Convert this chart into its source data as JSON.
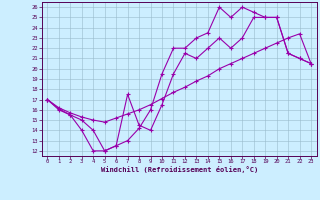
{
  "xlabel": "Windchill (Refroidissement éolien,°C)",
  "bg_color": "#cceeff",
  "line_color": "#9900aa",
  "grid_color": "#99bbcc",
  "xlim": [
    -0.5,
    23.5
  ],
  "ylim": [
    11.5,
    26.5
  ],
  "xticks": [
    0,
    1,
    2,
    3,
    4,
    5,
    6,
    7,
    8,
    9,
    10,
    11,
    12,
    13,
    14,
    15,
    16,
    17,
    18,
    19,
    20,
    21,
    22,
    23
  ],
  "yticks": [
    12,
    13,
    14,
    15,
    16,
    17,
    18,
    19,
    20,
    21,
    22,
    23,
    24,
    25,
    26
  ],
  "line1_x": [
    0,
    1,
    2,
    3,
    4,
    5,
    6,
    7,
    8,
    9,
    10,
    11,
    12,
    13,
    14,
    15,
    16,
    17,
    18,
    19,
    20,
    21,
    22,
    23
  ],
  "line1_y": [
    17,
    16,
    15.5,
    14,
    12,
    12,
    12.5,
    17.5,
    14.5,
    14,
    16.5,
    19.5,
    21.5,
    21,
    22,
    23,
    22,
    23,
    25,
    25,
    25,
    21.5,
    21,
    20.5
  ],
  "line2_x": [
    0,
    1,
    2,
    3,
    4,
    5,
    6,
    7,
    8,
    9,
    10,
    11,
    12,
    13,
    14,
    15,
    16,
    17,
    18,
    19,
    20,
    21,
    22,
    23
  ],
  "line2_y": [
    17,
    16.2,
    15.7,
    15.3,
    15,
    14.8,
    15.2,
    15.6,
    16.0,
    16.5,
    17.1,
    17.7,
    18.2,
    18.8,
    19.3,
    20.0,
    20.5,
    21.0,
    21.5,
    22.0,
    22.5,
    23.0,
    23.4,
    20.5
  ],
  "line3_x": [
    0,
    1,
    2,
    3,
    4,
    5,
    6,
    7,
    8,
    9,
    10,
    11,
    12,
    13,
    14,
    15,
    16,
    17,
    18,
    19,
    20,
    21,
    22,
    23
  ],
  "line3_y": [
    17,
    16.1,
    15.5,
    15,
    14,
    12,
    12.5,
    13,
    14.2,
    16,
    19.5,
    22,
    22,
    23,
    23.5,
    26,
    25,
    26,
    25.5,
    25,
    25,
    21.5,
    21,
    20.5
  ]
}
